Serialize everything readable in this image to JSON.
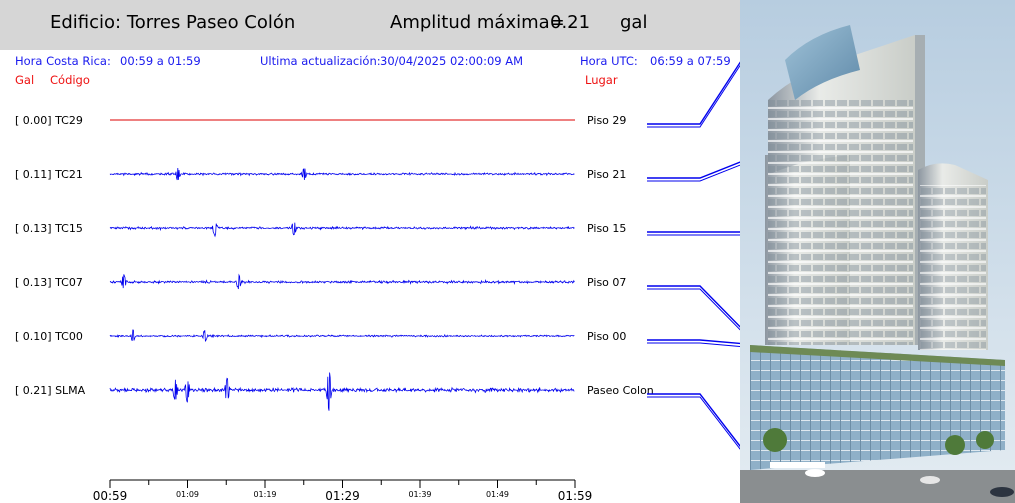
{
  "header": {
    "building_label": "Edificio: Torres Paseo Colón",
    "amplitude_label": "Amplitud máxima=",
    "amplitude_value": "0.21",
    "amplitude_unit": "gal"
  },
  "info": {
    "local_time_label": "Hora Costa Rica:",
    "local_time_range": "00:59 a 01:59",
    "last_update_label": "Ultima actualización:",
    "last_update_value": "30/04/2025 02:00:09 AM",
    "utc_label": "Hora UTC:",
    "utc_range": "06:59 a 07:59"
  },
  "columns": {
    "gal": "Gal",
    "code": "Código",
    "place": "Lugar"
  },
  "colors": {
    "trace": "#0000ee",
    "flat_trace": "#dd0000",
    "header_bg": "#d6d6d6",
    "info_text": "#1a1aee",
    "column_text": "#ee1111"
  },
  "chart_data": {
    "type": "line",
    "x_ticks": [
      "00:59",
      "01:09",
      "01:19",
      "01:29",
      "01:39",
      "01:49",
      "01:59"
    ],
    "x_range": [
      "00:59",
      "01:59"
    ],
    "series": [
      {
        "name": "TC29",
        "gal": "[   0.00] TC29",
        "place": "Piso 29",
        "amplitude": 0.0
      },
      {
        "name": "TC21",
        "gal": "[   0.11] TC21",
        "place": "Piso 21",
        "amplitude": 0.11
      },
      {
        "name": "TC15",
        "gal": "[   0.13] TC15",
        "place": "Piso 15",
        "amplitude": 0.13
      },
      {
        "name": "TC07",
        "gal": "[   0.13] TC07",
        "place": "Piso 07",
        "amplitude": 0.13
      },
      {
        "name": "TC00",
        "gal": "[   0.10] TC00",
        "place": "Piso 00",
        "amplitude": 0.1
      },
      {
        "name": "SLMA",
        "gal": "[   0.21] SLMA",
        "place": "Paseo Colon",
        "amplitude": 0.21
      }
    ]
  }
}
